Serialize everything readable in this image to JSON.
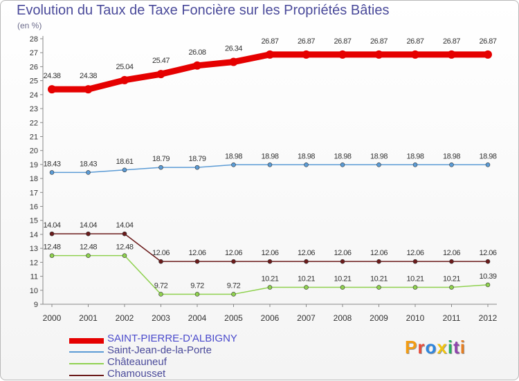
{
  "title": "Evolution du Taux de Taxe Foncière sur les Propriétés Bâties",
  "unit_label": "(en %)",
  "logo": {
    "text": "Proxiti",
    "colors": [
      "#f39c12",
      "#e74c3c",
      "#2e86de",
      "#f1c40f",
      "#27ae60",
      "#8e44ad",
      "#e67e22"
    ]
  },
  "chart_data": {
    "type": "line",
    "title": "Evolution du Taux de Taxe Foncière sur les Propriétés Bâties",
    "ylabel": "(en %)",
    "xlabel": "",
    "ylim": [
      9,
      28
    ],
    "y_ticks": [
      "9",
      "10",
      "11",
      "12",
      "13",
      "14",
      "15",
      "16",
      "17",
      "18",
      "19",
      "20",
      "21",
      "22",
      "23",
      "24",
      "25",
      "26",
      "27",
      "28"
    ],
    "categories": [
      "2000",
      "2001",
      "2002",
      "2003",
      "2004",
      "2005",
      "2006",
      "2007",
      "2008",
      "2009",
      "2010",
      "2011",
      "2012"
    ],
    "grid": false,
    "legend_position": "bottom-left",
    "series": [
      {
        "name": "SAINT-PIERRE-D'ALBIGNY",
        "color": "#e50000",
        "values": [
          24.38,
          24.38,
          25.04,
          25.47,
          26.08,
          26.34,
          26.87,
          26.87,
          26.87,
          26.87,
          26.87,
          26.87,
          26.87
        ],
        "labels": [
          "24.38",
          "24.38",
          "25.04",
          "25.47",
          "26.08",
          "26.34",
          "26.87",
          "26.87",
          "26.87",
          "26.87",
          "26.87",
          "26.87",
          "26.87"
        ]
      },
      {
        "name": "Saint-Jean-de-la-Porte",
        "color": "#5b9bd5",
        "values": [
          18.43,
          18.43,
          18.61,
          18.79,
          18.79,
          18.98,
          18.98,
          18.98,
          18.98,
          18.98,
          18.98,
          18.98,
          18.98
        ],
        "labels": [
          "18.43",
          "18.43",
          "18.61",
          "18.79",
          "18.79",
          "18.98",
          "18.98",
          "18.98",
          "18.98",
          "18.98",
          "18.98",
          "18.98",
          "18.98"
        ]
      },
      {
        "name": "Châteauneuf",
        "color": "#8fd14f",
        "values": [
          12.48,
          12.48,
          12.48,
          9.72,
          9.72,
          9.72,
          10.21,
          10.21,
          10.21,
          10.21,
          10.21,
          10.21,
          10.39
        ],
        "labels": [
          "12.48",
          "12.48",
          "12.48",
          "9.72",
          "9.72",
          "9.72",
          "10.21",
          "10.21",
          "10.21",
          "10.21",
          "10.21",
          "10.21",
          "10.39"
        ]
      },
      {
        "name": "Chamousset",
        "color": "#6b1a1a",
        "values": [
          14.04,
          14.04,
          14.04,
          12.06,
          12.06,
          12.06,
          12.06,
          12.06,
          12.06,
          12.06,
          12.06,
          12.06,
          12.06
        ],
        "labels": [
          "14.04",
          "14.04",
          "14.04",
          "12.06",
          "12.06",
          "12.06",
          "12.06",
          "12.06",
          "12.06",
          "12.06",
          "12.06",
          "12.06",
          "12.06"
        ]
      }
    ]
  }
}
